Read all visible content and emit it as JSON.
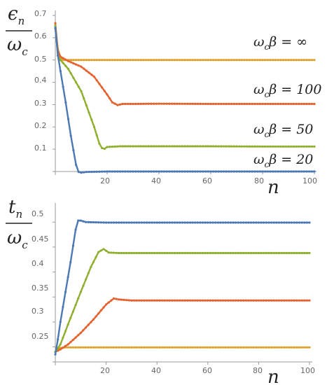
{
  "chart_data": [
    {
      "type": "line",
      "title": "",
      "ylabel_top": "ϵ",
      "ylabel_top_sub": "n",
      "ylabel_bottom": "ω",
      "ylabel_bottom_sub": "c",
      "xlabel": "n",
      "xlim": [
        0,
        100
      ],
      "ylim": [
        0,
        0.7
      ],
      "xticks": [
        20,
        40,
        60,
        80,
        100
      ],
      "yticks": [
        0.1,
        0.2,
        0.3,
        0.4,
        0.5,
        0.6,
        0.7
      ],
      "annotations": [
        {
          "text": "ω",
          "sub": "c",
          "rest": "β = ∞",
          "series": 0
        },
        {
          "text": "ω",
          "sub": "c",
          "rest": "β = 100",
          "series": 1
        },
        {
          "text": "ω",
          "sub": "c",
          "rest": "β = 50",
          "series": 2
        },
        {
          "text": "ω",
          "sub": "c",
          "rest": "β = 20",
          "series": 3
        }
      ],
      "series": [
        {
          "color": "#E1A02A",
          "x": [
            0,
            1,
            2,
            3,
            5,
            100
          ],
          "y": [
            0.64,
            0.55,
            0.51,
            0.5,
            0.5,
            0.5
          ]
        },
        {
          "color": "#E5622E",
          "x": [
            0,
            1,
            2,
            5,
            10,
            15,
            20,
            22,
            24,
            26,
            30,
            40,
            60,
            80,
            100
          ],
          "y": [
            0.665,
            0.54,
            0.515,
            0.495,
            0.47,
            0.425,
            0.345,
            0.31,
            0.298,
            0.303,
            0.303,
            0.304,
            0.303,
            0.303,
            0.303
          ]
        },
        {
          "color": "#8FB02E",
          "x": [
            0,
            1,
            2,
            5,
            10,
            15,
            17,
            18,
            19,
            20,
            25,
            40,
            60,
            80,
            100
          ],
          "y": [
            0.655,
            0.52,
            0.5,
            0.46,
            0.36,
            0.2,
            0.125,
            0.105,
            0.102,
            0.11,
            0.113,
            0.113,
            0.113,
            0.112,
            0.112
          ]
        },
        {
          "color": "#4C79B5",
          "x": [
            0,
            1,
            2,
            4,
            6,
            8,
            9,
            10,
            12,
            20,
            40,
            60,
            80,
            100
          ],
          "y": [
            0.645,
            0.52,
            0.45,
            0.31,
            0.16,
            0.03,
            -0.002,
            -0.005,
            -0.002,
            0,
            0,
            0,
            0,
            0
          ]
        }
      ]
    },
    {
      "type": "line",
      "title": "",
      "ylabel_top": "t",
      "ylabel_top_sub": "n",
      "ylabel_bottom": "ω",
      "ylabel_bottom_sub": "c",
      "xlabel": "n",
      "xlim": [
        0,
        100
      ],
      "ylim": [
        0.22,
        0.52
      ],
      "xticks": [
        20,
        40,
        60,
        80,
        100
      ],
      "yticks": [
        0.25,
        0.3,
        0.35,
        0.4,
        0.45,
        0.5
      ],
      "series": [
        {
          "color": "#E1A02A",
          "x": [
            0,
            1,
            2,
            4,
            100
          ],
          "y": [
            0.24,
            0.245,
            0.248,
            0.249,
            0.249
          ]
        },
        {
          "color": "#E5622E",
          "x": [
            0,
            2,
            5,
            10,
            15,
            20,
            23,
            25,
            30,
            40,
            60,
            80,
            100
          ],
          "y": [
            0.24,
            0.245,
            0.255,
            0.278,
            0.305,
            0.335,
            0.347,
            0.345,
            0.343,
            0.343,
            0.343,
            0.343,
            0.343
          ]
        },
        {
          "color": "#8FB02E",
          "x": [
            0,
            2,
            5,
            10,
            14,
            17,
            19,
            21,
            25,
            40,
            60,
            80,
            100
          ],
          "y": [
            0.24,
            0.255,
            0.295,
            0.36,
            0.41,
            0.44,
            0.446,
            0.439,
            0.438,
            0.438,
            0.438,
            0.438,
            0.438
          ]
        },
        {
          "color": "#4C79B5",
          "x": [
            0,
            1,
            2,
            4,
            6,
            8,
            9,
            10,
            12,
            20,
            40,
            60,
            80,
            100
          ],
          "y": [
            0.235,
            0.265,
            0.3,
            0.36,
            0.42,
            0.485,
            0.503,
            0.503,
            0.5,
            0.499,
            0.499,
            0.499,
            0.499,
            0.499
          ]
        }
      ]
    }
  ]
}
